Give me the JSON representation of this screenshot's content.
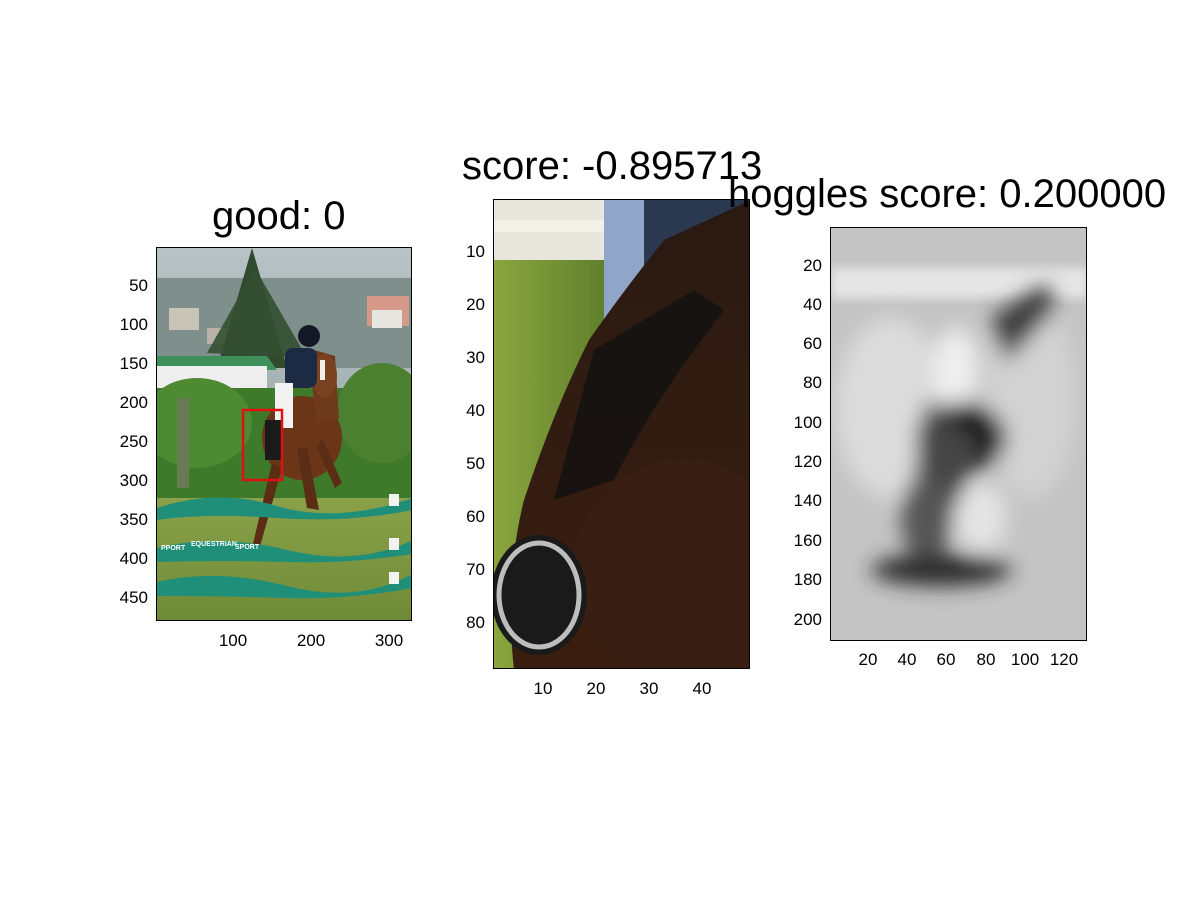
{
  "panels": [
    {
      "id": "full-image",
      "title": "good: 0",
      "yticks": [
        "50",
        "100",
        "150",
        "200",
        "250",
        "300",
        "350",
        "400",
        "450"
      ],
      "xticks": [
        "100",
        "200",
        "300"
      ]
    },
    {
      "id": "crop",
      "title": "score: -0.895713",
      "yticks": [
        "10",
        "20",
        "30",
        "40",
        "50",
        "60",
        "70",
        "80"
      ],
      "xticks": [
        "10",
        "20",
        "30",
        "40"
      ]
    },
    {
      "id": "hoggles",
      "title": "hoggles score: 0.200000",
      "yticks": [
        "20",
        "40",
        "60",
        "80",
        "100",
        "120",
        "140",
        "160",
        "180",
        "200"
      ],
      "xticks": [
        "20",
        "40",
        "60",
        "80",
        "100",
        "120"
      ]
    }
  ],
  "scene": {
    "sign_lines": [
      "PPORT",
      "EQUESTRIAN",
      "SPORT"
    ]
  },
  "colors": {
    "detection_box": "#e01010",
    "rail": "#1f8f7a",
    "grass": "#7e9a3a",
    "hedge": "#3f7a2a",
    "sky": "#a9b6b8"
  }
}
